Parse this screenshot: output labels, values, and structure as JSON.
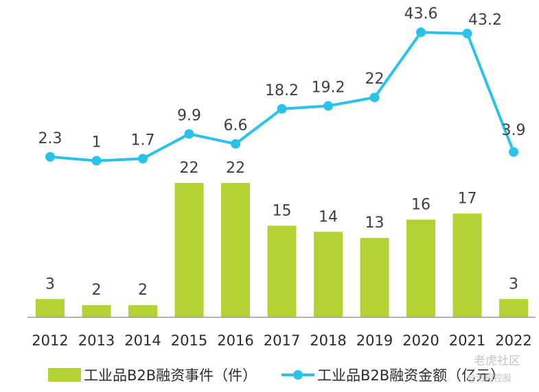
{
  "chart_data": {
    "type": "bar",
    "categories": [
      "2012",
      "2013",
      "2014",
      "2015",
      "2016",
      "2017",
      "2018",
      "2019",
      "2020",
      "2021",
      "2022"
    ],
    "series": [
      {
        "name": "工业品B2B融资事件（件）",
        "type": "bar",
        "color": "#b3d334",
        "values": [
          3,
          2,
          2,
          22,
          22,
          15,
          14,
          13,
          16,
          17,
          3
        ]
      },
      {
        "name": "工业品B2B融资金额（亿元）",
        "type": "line",
        "color": "#29c3ea",
        "values": [
          2.3,
          1,
          1.7,
          9.9,
          6.6,
          18.2,
          19.2,
          22,
          43.6,
          43.2,
          3.9
        ]
      }
    ],
    "title": "",
    "xlabel": "",
    "ylabel": "",
    "legend": "bottom",
    "grid": false
  },
  "watermark": {
    "line1": "老虎社区",
    "line2": "@海翔控股"
  }
}
